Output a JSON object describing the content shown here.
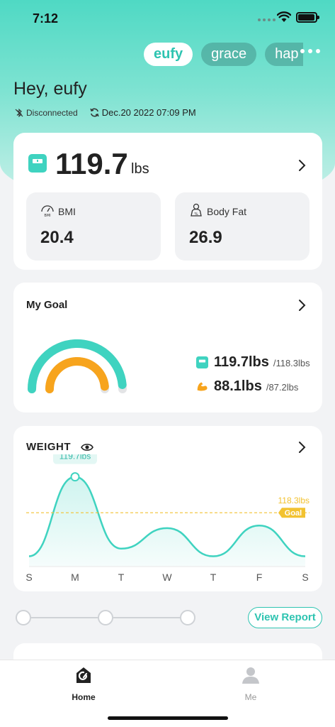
{
  "status_bar": {
    "time": "7:12"
  },
  "users": {
    "tabs": [
      {
        "label": "eufy",
        "active": true
      },
      {
        "label": "grace",
        "active": false
      },
      {
        "label": "hap",
        "active": false
      }
    ]
  },
  "header": {
    "greeting": "Hey, eufy",
    "connection_status": "Disconnected",
    "sync_time": "Dec.20 2022 07:09 PM"
  },
  "weight_card": {
    "value": "119.7",
    "unit": "lbs",
    "metrics": [
      {
        "label": "BMI",
        "value": "20.4",
        "icon": "bmi-gauge-icon"
      },
      {
        "label": "Body Fat",
        "value": "26.9",
        "icon": "body-fat-icon"
      }
    ]
  },
  "goal_card": {
    "title": "My Goal",
    "weight_current": "119.7lbs",
    "weight_goal": "/118.3lbs",
    "muscle_current": "88.1lbs",
    "muscle_goal": "/87.2lbs",
    "weight_progress_fraction": 0.97,
    "muscle_progress_fraction": 0.97,
    "colors": {
      "weight": "#3fd3c0",
      "muscle": "#f7a41d",
      "track": "#e3e4e6"
    }
  },
  "weight_chart": {
    "title": "WEIGHT",
    "peak_label": "119.7lbs",
    "goal_value_label": "118.3lbs",
    "goal_tag": "Goal",
    "colors": {
      "line": "#3fd3c0",
      "goal": "#f2c230"
    }
  },
  "chart_data": {
    "type": "area",
    "categories": [
      "S",
      "M",
      "T",
      "W",
      "T",
      "F",
      "S"
    ],
    "values": [
      116.6,
      119.7,
      116.9,
      117.7,
      116.6,
      117.8,
      116.6
    ],
    "goal": 118.3,
    "ylim": [
      116.2,
      120.3
    ]
  },
  "actions": {
    "view_report": "View Report"
  },
  "tabbar": {
    "items": [
      {
        "label": "Home",
        "active": true
      },
      {
        "label": "Me",
        "active": false
      }
    ]
  }
}
